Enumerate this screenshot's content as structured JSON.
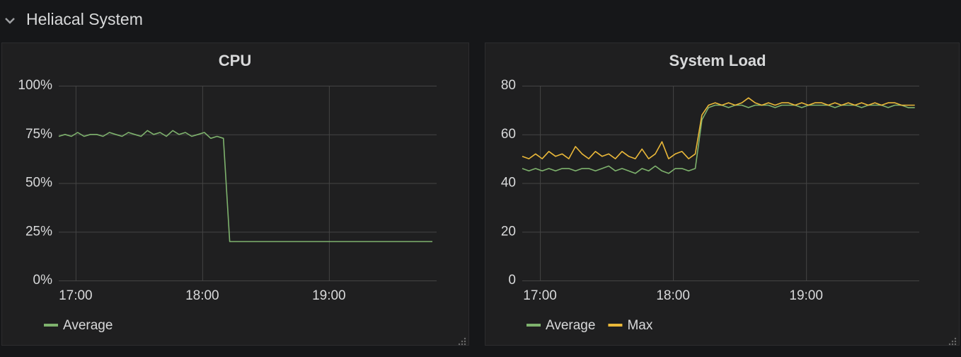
{
  "header": {
    "title": "Heliacal System"
  },
  "chart_data": [
    {
      "type": "line",
      "title": "CPU",
      "x": [
        "16:52",
        "16:55",
        "16:58",
        "17:01",
        "17:04",
        "17:07",
        "17:10",
        "17:13",
        "17:16",
        "17:19",
        "17:22",
        "17:25",
        "17:28",
        "17:31",
        "17:34",
        "17:37",
        "17:40",
        "17:43",
        "17:46",
        "17:49",
        "17:52",
        "17:55",
        "17:58",
        "18:01",
        "18:04",
        "18:07",
        "18:10",
        "18:13",
        "18:16",
        "18:19",
        "18:22",
        "18:25",
        "18:28",
        "18:31",
        "18:34",
        "18:37",
        "18:40",
        "18:43",
        "18:46",
        "18:49",
        "18:52",
        "18:55",
        "18:58",
        "19:01",
        "19:04",
        "19:07",
        "19:10",
        "19:13",
        "19:16",
        "19:19",
        "19:22",
        "19:25",
        "19:28",
        "19:31",
        "19:34",
        "19:37",
        "19:40",
        "19:43",
        "19:46",
        "19:49"
      ],
      "series": [
        {
          "name": "Average",
          "color": "#7eb26d",
          "values": [
            74,
            75,
            74,
            76,
            74,
            75,
            75,
            74,
            76,
            75,
            74,
            76,
            75,
            74,
            77,
            75,
            76,
            74,
            77,
            75,
            76,
            74,
            75,
            76,
            73,
            74,
            73,
            20,
            20,
            20,
            20,
            20,
            20,
            20,
            20,
            20,
            20,
            20,
            20,
            20,
            20,
            20,
            20,
            20,
            20,
            20,
            20,
            20,
            20,
            20,
            20,
            20,
            20,
            20,
            20,
            20,
            20,
            20,
            20,
            20
          ]
        }
      ],
      "xlim": [
        "16:52",
        "19:51"
      ],
      "xticks": [
        "17:00",
        "18:00",
        "19:00"
      ],
      "ylim": [
        0,
        100
      ],
      "yticks": [
        {
          "value": 0,
          "label": "0%"
        },
        {
          "value": 25,
          "label": "25%"
        },
        {
          "value": 50,
          "label": "50%"
        },
        {
          "value": 75,
          "label": "75%"
        },
        {
          "value": 100,
          "label": "100%"
        }
      ],
      "grid": true
    },
    {
      "type": "line",
      "title": "System Load",
      "x": [
        "16:52",
        "16:55",
        "16:58",
        "17:01",
        "17:04",
        "17:07",
        "17:10",
        "17:13",
        "17:16",
        "17:19",
        "17:22",
        "17:25",
        "17:28",
        "17:31",
        "17:34",
        "17:37",
        "17:40",
        "17:43",
        "17:46",
        "17:49",
        "17:52",
        "17:55",
        "17:58",
        "18:01",
        "18:04",
        "18:07",
        "18:10",
        "18:13",
        "18:16",
        "18:19",
        "18:22",
        "18:25",
        "18:28",
        "18:31",
        "18:34",
        "18:37",
        "18:40",
        "18:43",
        "18:46",
        "18:49",
        "18:52",
        "18:55",
        "18:58",
        "19:01",
        "19:04",
        "19:07",
        "19:10",
        "19:13",
        "19:16",
        "19:19",
        "19:22",
        "19:25",
        "19:28",
        "19:31",
        "19:34",
        "19:37",
        "19:40",
        "19:43",
        "19:46",
        "19:49"
      ],
      "series": [
        {
          "name": "Average",
          "color": "#7eb26d",
          "values": [
            46,
            45,
            46,
            45,
            46,
            45,
            46,
            46,
            45,
            46,
            46,
            45,
            46,
            47,
            45,
            46,
            45,
            44,
            46,
            45,
            47,
            45,
            44,
            46,
            46,
            45,
            46,
            66,
            71,
            72,
            72,
            71,
            72,
            72,
            71,
            72,
            72,
            72,
            71,
            72,
            72,
            72,
            71,
            72,
            72,
            72,
            72,
            71,
            72,
            72,
            72,
            71,
            72,
            72,
            72,
            71,
            72,
            72,
            71,
            71
          ]
        },
        {
          "name": "Max",
          "color": "#eab839",
          "values": [
            51,
            50,
            52,
            50,
            53,
            51,
            52,
            50,
            55,
            52,
            50,
            53,
            51,
            52,
            50,
            53,
            51,
            50,
            54,
            50,
            52,
            57,
            50,
            52,
            53,
            50,
            52,
            68,
            72,
            73,
            72,
            73,
            72,
            73,
            75,
            73,
            72,
            73,
            72,
            73,
            73,
            72,
            73,
            72,
            73,
            73,
            72,
            73,
            72,
            73,
            72,
            73,
            72,
            73,
            72,
            73,
            73,
            72,
            72,
            72
          ]
        }
      ],
      "xlim": [
        "16:52",
        "19:51"
      ],
      "xticks": [
        "17:00",
        "18:00",
        "19:00"
      ],
      "ylim": [
        0,
        80
      ],
      "yticks": [
        0,
        20,
        40,
        60,
        80
      ],
      "grid": true
    }
  ]
}
